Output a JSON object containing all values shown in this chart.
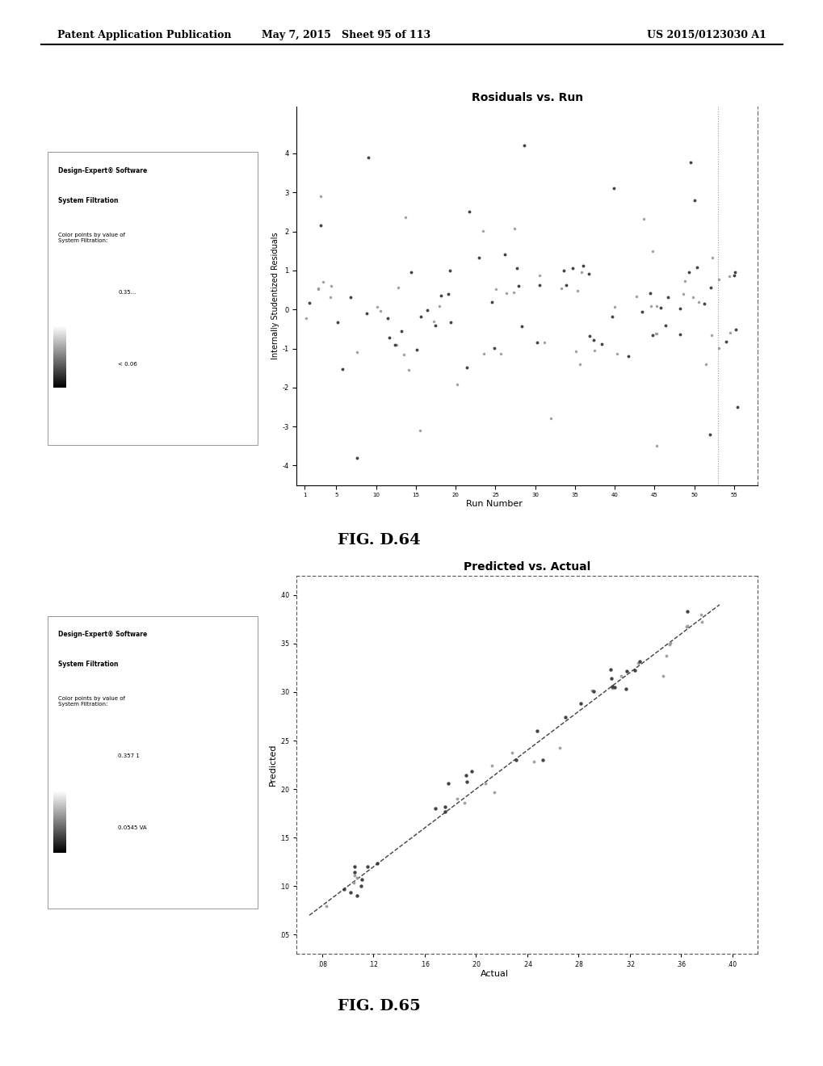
{
  "header_left": "Patent Application Publication",
  "header_mid": "May 7, 2015   Sheet 95 of 113",
  "header_right": "US 2015/0123030 A1",
  "fig1_title": "Rosiduals vs. Run",
  "fig1_xlabel": "Run Number",
  "fig1_ylabel": "Internally Studentized Residuals",
  "fig1_legend_title1": "Design-Expert® Software",
  "fig1_legend_title2": "System Filtration",
  "fig1_legend_sub": "Color points by value of\nSystem Filtration:",
  "fig1_legend_val1": "0.35...",
  "fig1_legend_val2": "< 0.06",
  "fig2_title": "Predicted vs. Actual",
  "fig2_xlabel": "Actual",
  "fig2_ylabel": "Predicted",
  "fig2_legend_title1": "Design-Expert® Software",
  "fig2_legend_title2": "System Filtration",
  "fig2_legend_sub": "Color points by value of\nSystem Filtration:",
  "fig2_legend_val1": "0.357 1",
  "fig2_legend_val2": "0.0545 VA",
  "fig1_label": "FIG. D.64",
  "fig2_label": "FIG. D.65",
  "bg_color": "#ffffff"
}
